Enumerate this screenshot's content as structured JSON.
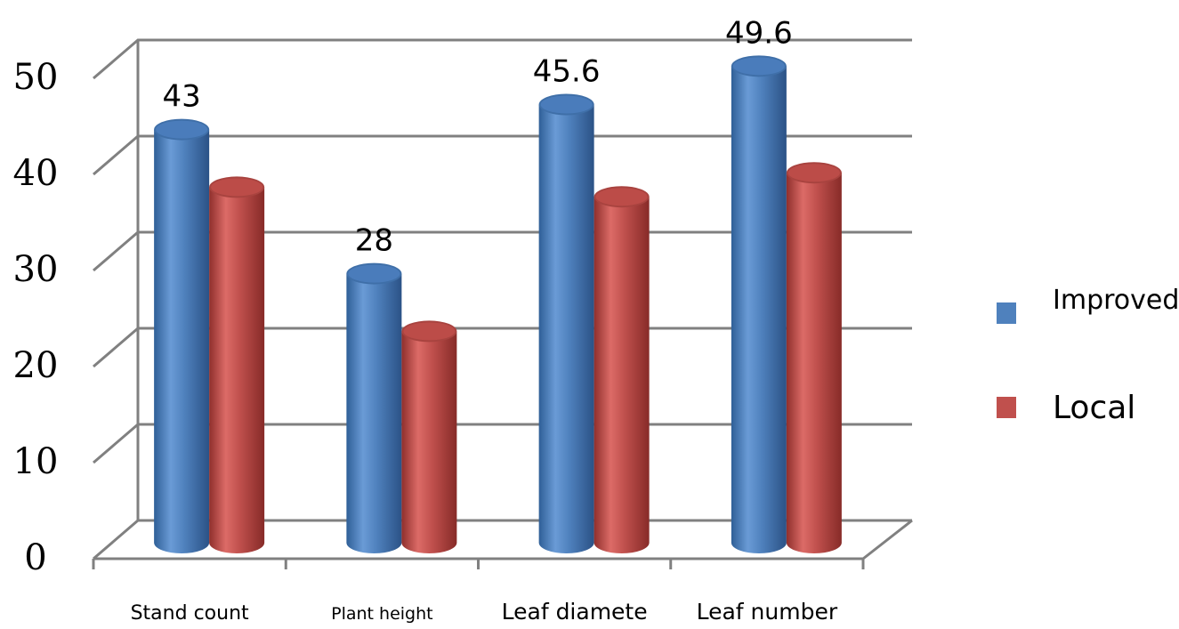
{
  "chart_data": {
    "type": "bar",
    "style": "3d-cylinder",
    "categories": [
      "Stand count",
      "Plant height",
      "Leaf diamete",
      "Leaf number"
    ],
    "series": [
      {
        "name": "Improved",
        "color": "#4f81bd",
        "values": [
          43,
          28,
          45.6,
          49.6
        ]
      },
      {
        "name": "Local",
        "color": "#c0504d",
        "values": [
          37,
          22,
          36,
          38.5
        ]
      }
    ],
    "data_labels": {
      "Improved": [
        "43",
        "28",
        "45.6",
        "49.6"
      ]
    },
    "y_ticks": [
      "0",
      "10",
      "20",
      "30",
      "40",
      "50"
    ],
    "ylim": [
      0,
      50
    ],
    "grid": true,
    "legend_position": "right"
  }
}
